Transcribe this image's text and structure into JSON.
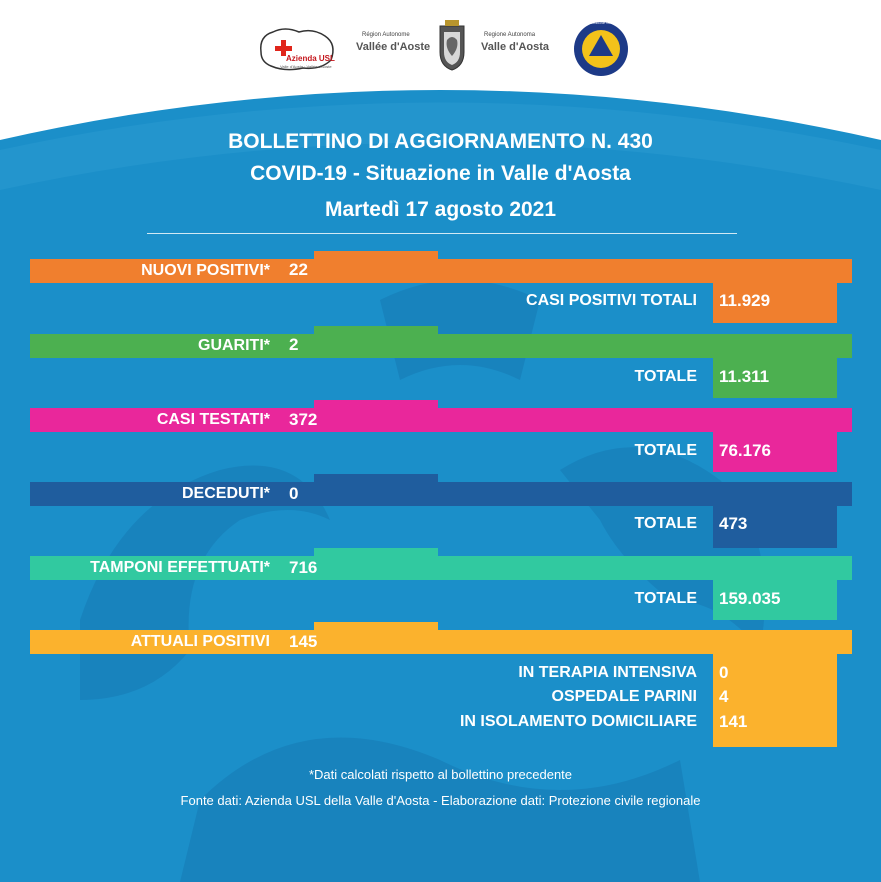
{
  "colors": {
    "background_blue": "#1b8fc9",
    "nuovi": "#f07f2e",
    "guariti": "#4cb050",
    "testati": "#e9279b",
    "deceduti": "#1f5d9e",
    "tamponi": "#31c9a0",
    "attuali": "#fbb22d"
  },
  "logos": {
    "usl": "Azienda USL",
    "usl_sub": "Valle d'Aosta · Vallée d'Aoste",
    "region1_line1": "Région Autonome",
    "region1_line2": "Vallée d'Aoste",
    "region2_line1": "Regione Autonoma",
    "region2_line2": "Valle d'Aosta",
    "protezione": "Protezione Civile"
  },
  "header": {
    "line1": "BOLLETTINO DI AGGIORNAMENTO N. 430",
    "line2": "COVID-19 - Situazione in Valle d'Aosta",
    "line3": "Martedì 17 agosto 2021"
  },
  "rows": {
    "nuovi": {
      "label": "NUOVI POSITIVI*",
      "value": "22",
      "total_label": "CASI POSITIVI TOTALI",
      "total_value": "11.929"
    },
    "guariti": {
      "label": "GUARITI*",
      "value": "2",
      "total_label": "TOTALE",
      "total_value": "11.311"
    },
    "testati": {
      "label": "CASI TESTATI*",
      "value": "372",
      "total_label": "TOTALE",
      "total_value": "76.176"
    },
    "deceduti": {
      "label": "DECEDUTI*",
      "value": "0",
      "total_label": "TOTALE",
      "total_value": "473"
    },
    "tamponi": {
      "label": "TAMPONI EFFETTUATI*",
      "value": "716",
      "total_label": "TOTALE",
      "total_value": "159.035"
    },
    "attuali": {
      "label": "ATTUALI POSITIVI",
      "value": "145",
      "details": [
        {
          "label": "IN TERAPIA INTENSIVA",
          "value": "0"
        },
        {
          "label": "OSPEDALE PARINI",
          "value": "4"
        },
        {
          "label": "IN ISOLAMENTO DOMICILIARE",
          "value": "141"
        }
      ]
    }
  },
  "footer": {
    "note": "*Dati calcolati rispetto al bollettino precedente",
    "source": "Fonte dati: Azienda USL della Valle d'Aosta - Elaborazione dati: Protezione civile regionale"
  }
}
